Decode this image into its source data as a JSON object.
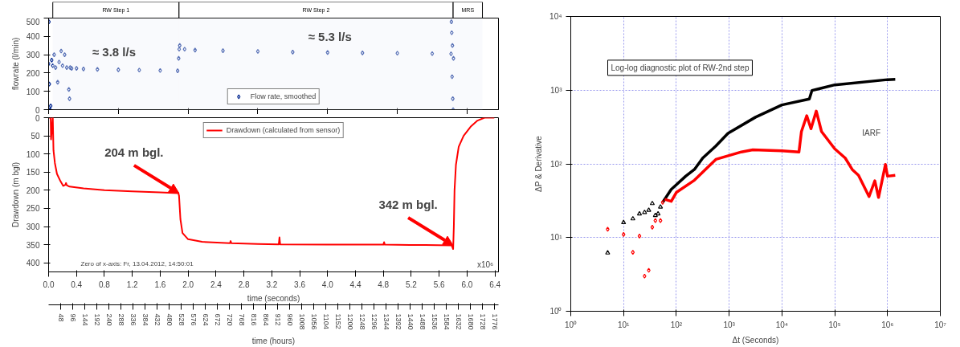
{
  "chart_data": [
    {
      "type": "scatter",
      "ylabel": "flowrate (l/min)",
      "xlim": [
        0,
        6.45
      ],
      "ylim": [
        0,
        500
      ],
      "yticks": [
        0,
        100,
        200,
        300,
        400,
        500
      ],
      "tick_labels": "y",
      "marker": "diamond",
      "legend": "bottom",
      "bands": [
        {
          "axis": "x",
          "from": 0.06,
          "to": 1.87,
          "label": "RW Step 1"
        },
        {
          "axis": "x",
          "from": 1.87,
          "to": 5.8,
          "label": "RW Step 2"
        },
        {
          "axis": "x",
          "from": 5.8,
          "to": 6.22,
          "label": "MRS"
        }
      ],
      "annotations": [
        "≈ 3.8 l/s",
        "≈ 5.3 l/s"
      ],
      "series": [
        {
          "name": "Flow rate, smoothed",
          "color": "#0b2f94",
          "x": [
            0,
            0.005,
            0.01,
            0.02,
            0.03,
            0.045,
            0.06,
            0.08,
            0.1,
            0.13,
            0.15,
            0.18,
            0.2,
            0.23,
            0.26,
            0.29,
            0.3,
            0.31,
            0.33,
            0.4,
            0.5,
            0.7,
            1.0,
            1.3,
            1.6,
            1.85,
            1.865,
            1.872,
            1.88,
            1.95,
            2.1,
            2.5,
            3.0,
            3.5,
            4.0,
            4.5,
            5.0,
            5.5,
            5.77,
            5.775,
            5.78,
            5.785,
            5.79,
            5.795,
            5.8,
            5.805
          ],
          "values": [
            250,
            480,
            140,
            0,
            20,
            270,
            240,
            300,
            230,
            150,
            260,
            320,
            240,
            300,
            230,
            110,
            60,
            230,
            225,
            225,
            222,
            220,
            218,
            216,
            214,
            212,
            280,
            330,
            350,
            330,
            325,
            322,
            318,
            314,
            312,
            310,
            308,
            306,
            305,
            480,
            420,
            180,
            350,
            60,
            0,
            280
          ]
        }
      ]
    },
    {
      "type": "line",
      "ylabel": "Drawdown (m bgl)",
      "xlabel": "time (seconds)",
      "x2label": "time (hours)",
      "xlim": [
        0,
        6.45
      ],
      "ylim": [
        425,
        0
      ],
      "yticks": [
        0,
        50,
        100,
        150,
        200,
        250,
        300,
        350,
        400
      ],
      "xticks": [
        {
          "value": 0,
          "label": "0.0"
        },
        {
          "value": 0.4,
          "label": "0.4"
        },
        {
          "value": 0.8,
          "label": "0.8"
        },
        {
          "value": 1.2,
          "label": "1.2"
        },
        {
          "value": 1.6,
          "label": "1.6"
        },
        {
          "value": 2.0,
          "label": "2.0"
        },
        2.4,
        2.8,
        3.2,
        3.6,
        {
          "value": 4.0,
          "label": "4.0"
        },
        4.4,
        4.8,
        5.2,
        5.6,
        {
          "value": 6.0,
          "label": "6.0"
        },
        6.4
      ],
      "x2lim": [
        0,
        1791.7
      ],
      "x2ticks": [
        48,
        96,
        144,
        192,
        240,
        288,
        336,
        384,
        432,
        480,
        528,
        576,
        624,
        672,
        720,
        768,
        816,
        864,
        912,
        960,
        1008,
        1056,
        1104,
        1152,
        1200,
        1248,
        1296,
        1344,
        1392,
        1440,
        1488,
        1536,
        1584,
        1632,
        1680,
        1728,
        1776
      ],
      "legend": "top",
      "annotations": [
        {
          "text": "204 m bgl.",
          "x": 1.87,
          "y": 208
        },
        {
          "text": "342 m bgl.",
          "x": 5.8,
          "y": 352
        },
        "Zero of x-axis: Fr, 13.04.2012, 14:50:01",
        "x10⁶"
      ],
      "series": [
        {
          "name": "Drawdown (calculated from sensor)",
          "color": "#ff0000",
          "x": [
            0,
            0.03,
            0.035,
            0.06,
            0.07,
            0.09,
            0.12,
            0.17,
            0.21,
            0.24,
            0.25,
            0.26,
            0.3,
            0.5,
            0.8,
            1.2,
            1.6,
            1.86,
            1.87,
            1.89,
            1.92,
            2.0,
            2.2,
            2.6,
            2.61,
            2.62,
            3.0,
            3.3,
            3.31,
            3.32,
            4.0,
            4.8,
            4.81,
            4.82,
            5.4,
            5.78,
            5.8,
            5.81,
            5.82,
            5.84,
            5.88,
            5.95,
            6.05,
            6.15,
            6.25,
            6.39
          ],
          "values": [
            0,
            0,
            60,
            0,
            90,
            125,
            155,
            175,
            188,
            185,
            180,
            186,
            190,
            195,
            200,
            203,
            206,
            208,
            215,
            280,
            318,
            335,
            342,
            346,
            340,
            346,
            348,
            349,
            330,
            349,
            350,
            350,
            343,
            350,
            351,
            352,
            362,
            300,
            200,
            130,
            80,
            50,
            25,
            8,
            0,
            0
          ]
        }
      ]
    },
    {
      "type": "line",
      "xlabel": "Δt (Seconds)",
      "ylabel": "ΔP & Derivative",
      "log": "xy",
      "grid": true,
      "xlim": [
        1,
        10000000
      ],
      "ylim": [
        1,
        10000
      ],
      "xticks": [
        {
          "value": 1,
          "label": "10⁰"
        },
        {
          "value": 10,
          "label": "10¹"
        },
        {
          "value": 100,
          "label": "10²"
        },
        {
          "value": 1000,
          "label": "10³"
        },
        {
          "value": 10000,
          "label": "10⁴"
        },
        {
          "value": 100000,
          "label": "10⁵"
        },
        {
          "value": 1000000,
          "label": "10⁶"
        },
        {
          "value": 10000000,
          "label": "10⁷"
        }
      ],
      "yticks": [
        {
          "value": 1,
          "label": "10⁰"
        },
        {
          "value": 10,
          "label": "10¹"
        },
        {
          "value": 100,
          "label": "10²"
        },
        {
          "value": 1000,
          "label": "10³"
        },
        {
          "value": 10000,
          "label": "10⁴"
        }
      ],
      "annotations": [
        "Log-log diagnostic plot of RW-2nd step",
        "IARF"
      ],
      "series": [
        {
          "type": "scatter",
          "marker": "triangle",
          "color": "#000000",
          "x": [
            5,
            10,
            15,
            20,
            25,
            30,
            35,
            40,
            45,
            50
          ],
          "values": [
            6.2,
            16,
            18,
            21,
            22,
            23.5,
            29,
            20,
            21,
            26
          ]
        },
        {
          "type": "line",
          "color": "#000000",
          "x": [
            55,
            80,
            100,
            150,
            220,
            316,
            560,
            950,
            3160,
            10000,
            33000,
            37000,
            100000,
            1000000,
            1400000
          ],
          "values": [
            30,
            45,
            52,
            68,
            84,
            120,
            175,
            260,
            430,
            630,
            760,
            990,
            1180,
            1390,
            1400
          ]
        },
        {
          "type": "scatter",
          "marker": "diamond",
          "color": "#ff0000",
          "x": [
            5,
            10,
            15,
            20,
            25,
            30,
            35,
            40,
            50,
            55
          ],
          "values": [
            13,
            11,
            6.3,
            10.5,
            3.0,
            3.6,
            13.8,
            17,
            17,
            30
          ]
        },
        {
          "type": "line",
          "color": "#ff0000",
          "x": [
            60,
            80,
            100,
            220,
            560,
            1700,
            2800,
            10000,
            21000,
            23400,
            29500,
            35500,
            44700,
            56200,
            100000,
            158000,
            214000,
            282000,
            447000,
            575000,
            676000,
            912000,
            1000000,
            1400000
          ],
          "values": [
            33,
            31,
            41,
            60,
            115,
            145,
            155,
            150,
            145,
            275,
            450,
            300,
            520,
            275,
            160,
            120,
            84,
            70,
            36,
            59,
            35,
            98,
            68,
            70
          ]
        }
      ]
    }
  ]
}
